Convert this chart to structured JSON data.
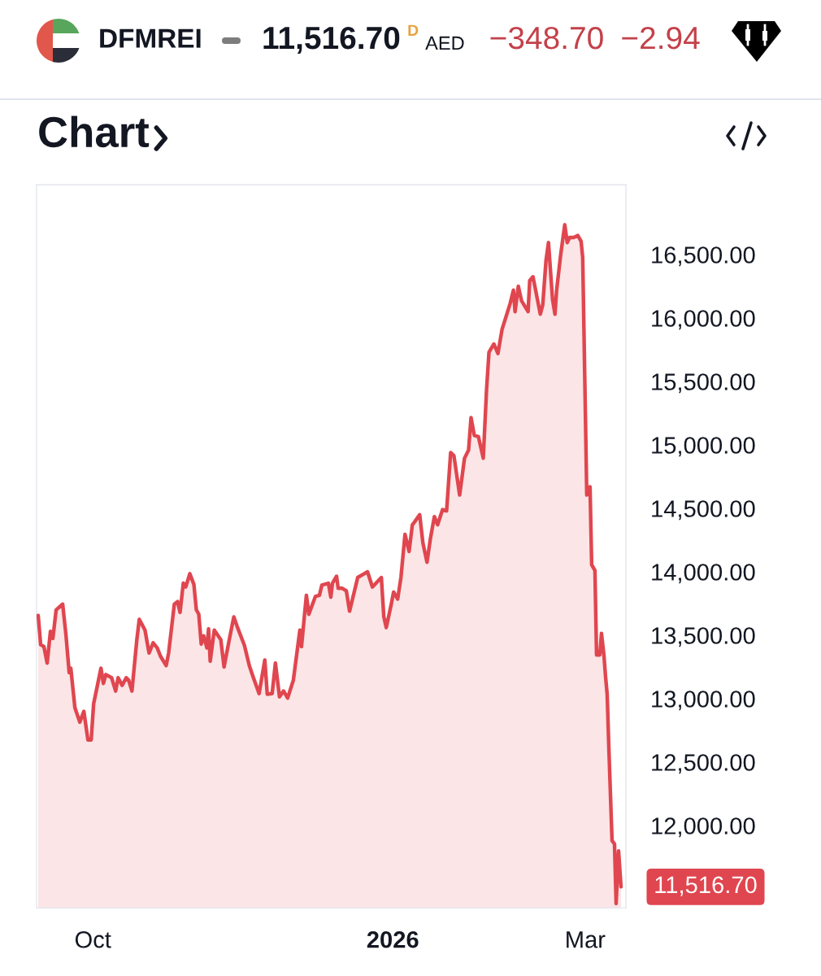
{
  "chart_data": {
    "type": "area",
    "title": "DFMREI",
    "subtitle": "Chart",
    "annotations": [
      "11,516.70",
      "D",
      "AED",
      "−348.70",
      "−2.94",
      {
        "text": "11,516.70",
        "x": "2026-03-12T00:00",
        "y": 11516.7
      }
    ],
    "color": "#e0464f",
    "x": [
      "2025-09-14T06:00",
      "2025-09-15T00:00",
      "2025-09-16T00:00",
      "2025-09-17T00:00",
      "2025-09-18T00:00",
      "2025-09-18T18:00",
      "2025-09-19T18:00",
      "2025-09-21T18:00",
      "2025-09-22T18:00",
      "2025-09-23T18:00",
      "2025-09-24T06:00",
      "2025-09-25T12:00",
      "2025-09-27T00:00",
      "2025-09-28T06:00",
      "2025-09-29T12:00",
      "2025-09-30T12:00",
      "2025-10-01T06:00",
      "2025-10-03T12:00",
      "2025-10-04T06:00",
      "2025-10-05T00:00",
      "2025-10-06T18:00",
      "2025-10-08T00:00",
      "2025-10-08T18:00",
      "2025-10-10T00:00",
      "2025-10-11T06:00",
      "2025-10-12T00:00",
      "2025-10-13T00:00",
      "2025-10-14T12:00",
      "2025-10-15T06:00",
      "2025-10-17T00:00",
      "2025-10-18T06:00",
      "2025-10-19T12:00",
      "2025-10-20T18:00",
      "2025-10-21T18:00",
      "2025-10-23T12:00",
      "2025-10-24T06:00",
      "2025-10-26T00:00",
      "2025-10-27T00:00",
      "2025-10-27T18:00",
      "2025-10-28T18:00",
      "2025-10-29T12:00",
      "2025-10-30T18:00",
      "2025-11-01T00:00",
      "2025-11-01T18:00",
      "2025-11-02T12:00",
      "2025-11-03T06:00",
      "2025-11-04T00:00",
      "2025-11-05T00:00",
      "2025-11-05T12:00",
      "2025-11-06T00:00",
      "2025-11-07T06:00",
      "2025-11-09T06:00",
      "2025-11-10T06:00",
      "2025-11-12T00:00",
      "2025-11-13T06:00",
      "2025-11-14T06:00",
      "2025-11-16T12:00",
      "2025-11-18T00:00",
      "2025-11-19T06:00",
      "2025-11-21T00:00",
      "2025-11-22T18:00",
      "2025-11-23T12:00",
      "2025-11-25T00:00",
      "2025-11-26T00:00",
      "2025-11-27T06:00",
      "2025-11-28T12:00",
      "2025-11-29T18:00",
      "2025-12-01T12:00",
      "2025-12-03T12:00",
      "2025-12-04T00:00",
      "2025-12-05T12:00",
      "2025-12-06T06:00",
      "2025-12-08T06:00",
      "2025-12-09T12:00",
      "2025-12-10T06:00",
      "2025-12-12T06:00",
      "2025-12-13T00:00",
      "2025-12-13T12:00",
      "2025-12-14T18:00",
      "2025-12-15T06:00",
      "2025-12-16T12:00",
      "2025-12-17T18:00",
      "2025-12-18T18:00",
      "2025-12-21T06:00",
      "2025-12-23T06:00",
      "2025-12-24T06:00",
      "2025-12-25T18:00",
      "2025-12-28T12:00",
      "2025-12-29T06:00",
      "2025-12-30T00:00",
      "2025-12-31T12:00",
      "2026-01-01T06:00",
      "2026-01-02T12:00",
      "2026-01-03T12:00",
      "2026-01-04T18:00",
      "2026-01-06T00:00",
      "2026-01-07T00:00",
      "2026-01-07T18:00",
      "2026-01-09T06:00",
      "2026-01-10T06:00",
      "2026-01-11T12:00",
      "2026-01-12T12:00",
      "2026-01-13T18:00",
      "2026-01-14T18:00",
      "2026-01-16T06:00",
      "2026-01-17T12:00",
      "2026-01-18T18:00",
      "2026-01-19T18:00",
      "2026-01-21T12:00",
      "2026-01-23T00:00",
      "2026-01-24T06:00",
      "2026-01-25T00:00",
      "2026-01-26T00:00",
      "2026-01-27T06:00",
      "2026-01-28T18:00",
      "2026-01-29T18:00",
      "2026-01-30T12:00",
      "2026-02-01T00:00",
      "2026-02-02T06:00",
      "2026-02-03T12:00",
      "2026-02-06T00:00",
      "2026-02-07T00:00",
      "2026-02-07T12:00",
      "2026-02-08T12:00",
      "2026-02-09T12:00",
      "2026-02-11T12:00",
      "2026-02-12T00:00",
      "2026-02-13T00:00",
      "2026-02-15T06:00",
      "2026-02-16T00:00",
      "2026-02-17T00:00",
      "2026-02-17T18:00",
      "2026-02-19T00:00",
      "2026-02-19T18:00",
      "2026-02-20T06:00",
      "2026-02-21T12:00",
      "2026-02-22T18:00",
      "2026-02-23T12:00",
      "2026-02-24T06:00",
      "2026-02-25T12:00",
      "2026-02-26T18:00",
      "2026-02-27T18:00",
      "2026-02-28T06:00",
      "2026-03-01T12:00",
      "2026-03-02T12:00",
      "2026-03-03T00:00",
      "2026-03-04T00:00",
      "2026-03-04T12:00",
      "2026-03-05T12:00",
      "2026-03-06T00:00",
      "2026-03-06T18:00",
      "2026-03-07T06:00",
      "2026-03-07T18:00",
      "2026-03-08T06:00",
      "2026-03-09T06:00",
      "2026-03-10T00:00",
      "2026-03-10T12:00",
      "2026-03-11T06:00",
      "2026-03-12T00:00"
    ],
    "values": [
      13655,
      13425,
      13410,
      13280,
      13530,
      13475,
      13700,
      13745,
      13505,
      13205,
      13240,
      12930,
      12815,
      12900,
      12675,
      12675,
      12960,
      13240,
      13120,
      13190,
      13165,
      13060,
      13165,
      13105,
      13165,
      13145,
      13060,
      13465,
      13625,
      13540,
      13360,
      13440,
      13400,
      13335,
      13260,
      13360,
      13745,
      13765,
      13680,
      13910,
      13880,
      13985,
      13900,
      13700,
      13665,
      13430,
      13495,
      13400,
      13550,
      13295,
      13540,
      13465,
      13250,
      13485,
      13645,
      13570,
      13420,
      13260,
      13165,
      13040,
      13305,
      13035,
      13040,
      13280,
      13015,
      13060,
      13005,
      13145,
      13540,
      13410,
      13815,
      13665,
      13805,
      13815,
      13895,
      13910,
      13800,
      13910,
      13965,
      13870,
      13870,
      13850,
      13690,
      13955,
      13985,
      14000,
      13880,
      13955,
      13645,
      13560,
      13740,
      13840,
      13785,
      13955,
      14295,
      14160,
      14370,
      14395,
      14450,
      14225,
      14075,
      14255,
      14435,
      14370,
      14490,
      14480,
      14940,
      14915,
      14605,
      14895,
      14960,
      15215,
      15075,
      15065,
      14895,
      15430,
      15730,
      15795,
      15720,
      15910,
      16115,
      16220,
      16050,
      16250,
      16135,
      16050,
      16295,
      16325,
      16030,
      16105,
      16455,
      16595,
      16145,
      16030,
      16220,
      16500,
      16735,
      16595,
      16635,
      16635,
      16650,
      16605,
      16475,
      14605,
      14670,
      14055,
      14010,
      13345,
      13345,
      13515,
      13345,
      13175,
      13035,
      12625,
      11880,
      11855,
      11385,
      11800,
      11516.7
    ],
    "xlim": [
      "2025-09-13T18:00",
      "2026-03-13T12:00"
    ],
    "xticks": [
      {
        "value": "2025-10-01",
        "label": "Oct"
      },
      {
        "value": "2026-01-01",
        "label": "2026"
      },
      {
        "value": "2026-03-01",
        "label": "Mar"
      }
    ],
    "ylim": [
      11350,
      17050
    ],
    "yticks": [
      {
        "value": 12000,
        "label": "12,000.00"
      },
      {
        "value": 12500,
        "label": "12,500.00"
      },
      {
        "value": 13000,
        "label": "13,000.00"
      },
      {
        "value": 13500,
        "label": "13,500.00"
      },
      {
        "value": 14000,
        "label": "14,000.00"
      },
      {
        "value": 14500,
        "label": "14,500.00"
      },
      {
        "value": 15000,
        "label": "15,000.00"
      },
      {
        "value": 15500,
        "label": "15,500.00"
      },
      {
        "value": 16000,
        "label": "16,000.00"
      },
      {
        "value": 16500,
        "label": "16,500.00"
      }
    ]
  }
}
